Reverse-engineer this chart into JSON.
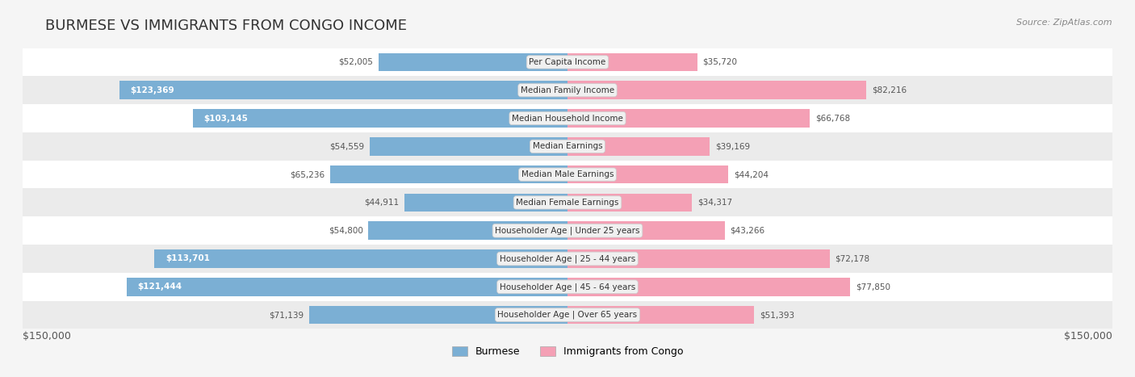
{
  "title": "BURMESE VS IMMIGRANTS FROM CONGO INCOME",
  "source": "Source: ZipAtlas.com",
  "categories": [
    "Per Capita Income",
    "Median Family Income",
    "Median Household Income",
    "Median Earnings",
    "Median Male Earnings",
    "Median Female Earnings",
    "Householder Age | Under 25 years",
    "Householder Age | 25 - 44 years",
    "Householder Age | 45 - 64 years",
    "Householder Age | Over 65 years"
  ],
  "burmese_values": [
    52005,
    123369,
    103145,
    54559,
    65236,
    44911,
    54800,
    113701,
    121444,
    71139
  ],
  "congo_values": [
    35720,
    82216,
    66768,
    39169,
    44204,
    34317,
    43266,
    72178,
    77850,
    51393
  ],
  "burmese_color": "#7bafd4",
  "burmese_color_dark": "#5b9abf",
  "congo_color": "#f4a0b5",
  "congo_color_dark": "#e8708a",
  "max_value": 150000,
  "bg_color": "#f5f5f5",
  "row_colors": [
    "#ffffff",
    "#f0f0f0"
  ],
  "label_bg": "#f0f0f0",
  "title_fontsize": 13,
  "tick_fontsize": 9,
  "label_fontsize": 8,
  "value_fontsize": 8,
  "legend_labels": [
    "Burmese",
    "Immigrants from Congo"
  ],
  "xlabel_left": "$150,000",
  "xlabel_right": "$150,000"
}
